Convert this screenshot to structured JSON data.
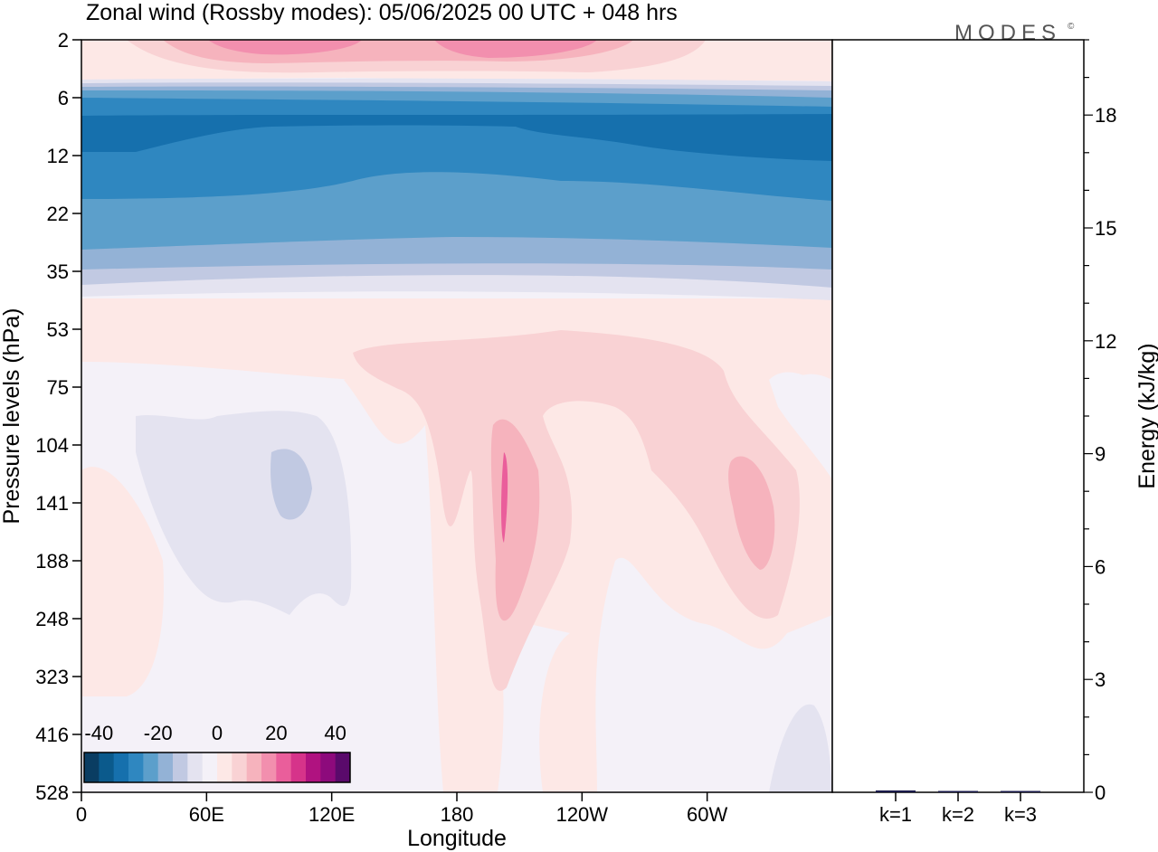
{
  "chart_data": {
    "type": "heatmap",
    "title": "Zonal wind (Rossby modes):  05/06/2025  00 UTC  + 048 hrs",
    "logo": "MODES",
    "logo_mark": "©",
    "xlabel": "Longitude",
    "ylabel": "Pressure levels (hPa)",
    "y2label": "Energy (kJ/kg)",
    "x_tick_labels": [
      "0",
      "60E",
      "120E",
      "180",
      "120W",
      "60W"
    ],
    "y_tick_labels": [
      "2",
      "6",
      "12",
      "22",
      "35",
      "53",
      "75",
      "104",
      "141",
      "188",
      "248",
      "323",
      "416",
      "528"
    ],
    "y_scale": "pressure (log-like, top = low pressure)",
    "colorbar": {
      "tick_labels": [
        "-40",
        "-20",
        "0",
        "20",
        "40"
      ],
      "range": [
        -45,
        45
      ],
      "colors": [
        "#0a3d62",
        "#0b5a8c",
        "#1670ad",
        "#2f87c0",
        "#5c9fcb",
        "#93b2d6",
        "#c1c9e2",
        "#e4e3f0",
        "#f4f1f8",
        "#fde8e6",
        "#f9d2d4",
        "#f6b3bd",
        "#f28fae",
        "#ea5e9b",
        "#d6338a",
        "#b01280",
        "#8d0a7c",
        "#5a0a6b"
      ]
    },
    "energy_panel": {
      "y_tick_labels": [
        "0",
        "3",
        "6",
        "9",
        "12",
        "15",
        "18"
      ],
      "ylim": [
        0,
        20
      ],
      "categories": [
        "k=1",
        "k=2",
        "k=3"
      ],
      "values": [
        0.05,
        0.03,
        0.02
      ]
    },
    "field_description_levels": {
      "stratosphere_top_2hPa": "weak easterly/positive (pink) near 0-200",
      "band_6_35hPa": "strong negative (blue) zonal wind band, strongest near 6-12 hPa",
      "troposphere_53_528hPa": "weak mixed, positive (pink) cores near 180-150W and 60W"
    }
  }
}
